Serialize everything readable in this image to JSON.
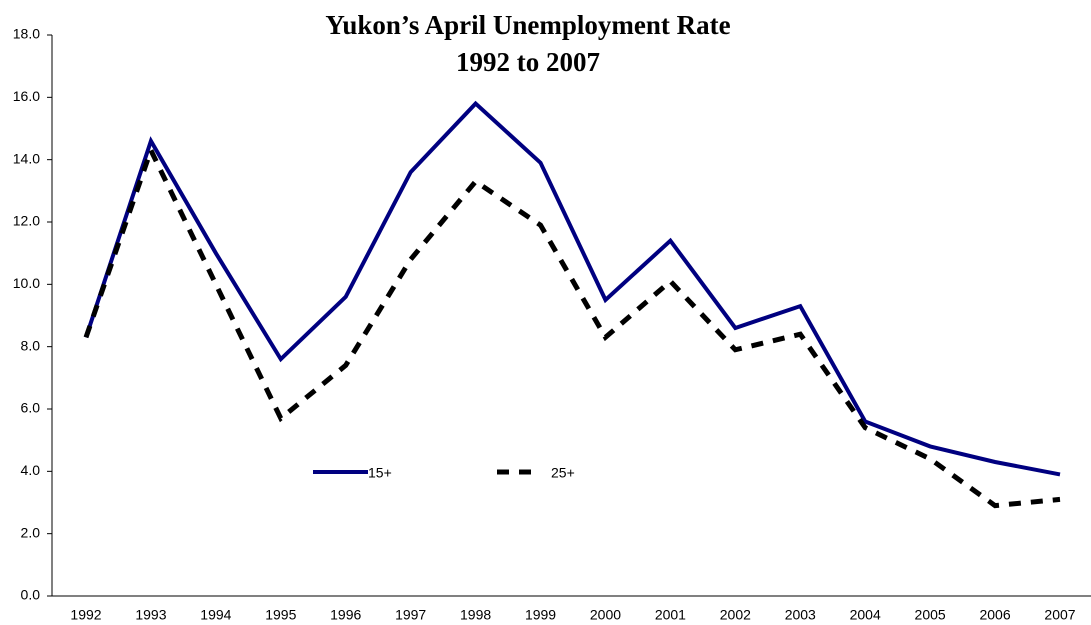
{
  "chart_data": {
    "type": "line",
    "title": "Yukon’s April Unemployment Rate",
    "subtitle": "1992 to 2007",
    "categories": [
      "1992",
      "1993",
      "1994",
      "1995",
      "1996",
      "1997",
      "1998",
      "1999",
      "2000",
      "2001",
      "2002",
      "2003",
      "2004",
      "2005",
      "2006",
      "2007"
    ],
    "series": [
      {
        "name": "15+",
        "color": "#000080",
        "dash": false,
        "values": [
          8.3,
          14.6,
          11.0,
          7.6,
          9.6,
          13.6,
          15.8,
          13.9,
          9.5,
          11.4,
          8.6,
          9.3,
          5.6,
          4.8,
          4.3,
          3.9
        ]
      },
      {
        "name": "25+",
        "color": "#000000",
        "dash": true,
        "values": [
          8.3,
          14.3,
          10.0,
          5.7,
          7.4,
          10.8,
          13.3,
          11.9,
          8.3,
          10.1,
          7.9,
          8.4,
          5.4,
          4.4,
          2.9,
          3.1
        ]
      }
    ],
    "ylim": [
      0,
      18
    ],
    "yticks": [
      {
        "value": 0,
        "label": "0.0"
      },
      {
        "value": 2,
        "label": "2.0"
      },
      {
        "value": 4,
        "label": "4.0"
      },
      {
        "value": 6,
        "label": "6.0"
      },
      {
        "value": 8,
        "label": "8.0"
      },
      {
        "value": 10,
        "label": "10.0"
      },
      {
        "value": 12,
        "label": "12.0"
      },
      {
        "value": 14,
        "label": "14.0"
      },
      {
        "value": 16,
        "label": "16.0"
      },
      {
        "value": 18,
        "label": "18.0"
      }
    ],
    "grid": false,
    "legend": "center"
  }
}
